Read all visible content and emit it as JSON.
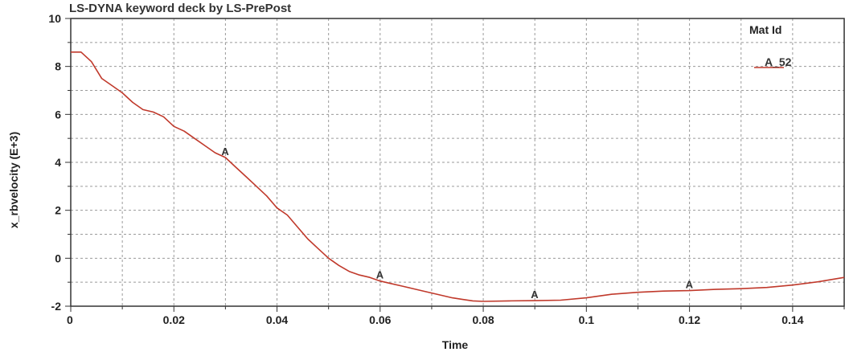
{
  "chart_data": {
    "type": "line",
    "title": "LS-DYNA keyword deck by LS-PrePost",
    "xlabel": "Time",
    "ylabel": "x_rbvelocity (E+3)",
    "xlim": [
      0,
      0.15
    ],
    "ylim": [
      -2,
      10
    ],
    "xticks": [
      0,
      0.02,
      0.04,
      0.06,
      0.08,
      0.1,
      0.12,
      0.14
    ],
    "xtick_labels": [
      "0",
      "0.02",
      "0.04",
      "0.06",
      "0.08",
      "0.1",
      "0.12",
      "0.14"
    ],
    "yticks": [
      -2,
      0,
      2,
      4,
      6,
      8,
      10
    ],
    "ytick_labels": [
      "-2",
      "0",
      "2",
      "4",
      "6",
      "8",
      "10"
    ],
    "grid": true,
    "legend": {
      "title": "Mat Id",
      "position": "top-right"
    },
    "series": [
      {
        "name": "A_52",
        "marker_label": "A",
        "marker_x": [
          0.03,
          0.06,
          0.09,
          0.12
        ],
        "color": "#c0392b",
        "x": [
          0,
          0.002,
          0.004,
          0.006,
          0.008,
          0.01,
          0.012,
          0.014,
          0.016,
          0.018,
          0.02,
          0.022,
          0.024,
          0.026,
          0.028,
          0.03,
          0.032,
          0.034,
          0.036,
          0.038,
          0.04,
          0.042,
          0.044,
          0.046,
          0.048,
          0.05,
          0.052,
          0.054,
          0.056,
          0.058,
          0.06,
          0.062,
          0.064,
          0.066,
          0.068,
          0.07,
          0.072,
          0.074,
          0.076,
          0.078,
          0.08,
          0.085,
          0.09,
          0.095,
          0.1,
          0.105,
          0.11,
          0.115,
          0.12,
          0.125,
          0.13,
          0.135,
          0.14,
          0.145,
          0.15
        ],
        "y": [
          8.6,
          8.6,
          8.2,
          7.5,
          7.2,
          6.9,
          6.5,
          6.2,
          6.1,
          5.9,
          5.5,
          5.3,
          5.0,
          4.7,
          4.4,
          4.2,
          3.8,
          3.4,
          3.0,
          2.6,
          2.1,
          1.8,
          1.3,
          0.8,
          0.4,
          0.0,
          -0.3,
          -0.55,
          -0.7,
          -0.8,
          -0.95,
          -1.05,
          -1.15,
          -1.25,
          -1.35,
          -1.45,
          -1.55,
          -1.65,
          -1.72,
          -1.78,
          -1.8,
          -1.78,
          -1.77,
          -1.75,
          -1.65,
          -1.5,
          -1.42,
          -1.37,
          -1.35,
          -1.3,
          -1.27,
          -1.22,
          -1.12,
          -0.98,
          -0.8
        ]
      }
    ]
  }
}
